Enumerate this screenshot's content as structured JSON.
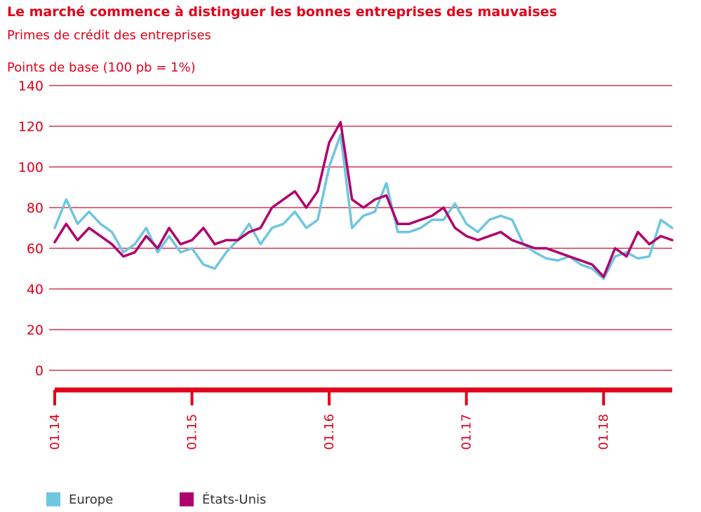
{
  "title": "Le marché commence à distinguer les bonnes entreprises des mauvaises",
  "subtitle": "Primes de crédit des entreprises",
  "chart_data": {
    "type": "line",
    "title": "Le marché commence à distinguer les bonnes entreprises des mauvaises",
    "subtitle": "Primes de crédit des entreprises",
    "ylabel": "Points de base (100 pb = 1%)",
    "xlabel": "",
    "ylim": [
      0,
      140
    ],
    "yticks": [
      0,
      20,
      40,
      60,
      80,
      100,
      120,
      140
    ],
    "xlim": [
      "2014-01",
      "2018-07"
    ],
    "xticks": [
      "01.14",
      "01.15",
      "01.16",
      "01.17",
      "01.18"
    ],
    "x_tick_dates": [
      "2014-01",
      "2015-01",
      "2016-01",
      "2017-01",
      "2018-01"
    ],
    "grid": "horizontal",
    "legend_position": "bottom-left",
    "series": [
      {
        "name": "Europe",
        "color": "#6ec6df",
        "x": [
          "2014-01",
          "2014-02",
          "2014-03",
          "2014-04",
          "2014-05",
          "2014-06",
          "2014-07",
          "2014-08",
          "2014-09",
          "2014-10",
          "2014-11",
          "2014-12",
          "2015-01",
          "2015-02",
          "2015-03",
          "2015-04",
          "2015-05",
          "2015-06",
          "2015-07",
          "2015-08",
          "2015-09",
          "2015-10",
          "2015-11",
          "2015-12",
          "2016-01",
          "2016-02",
          "2016-03",
          "2016-04",
          "2016-05",
          "2016-06",
          "2016-07",
          "2016-08",
          "2016-09",
          "2016-10",
          "2016-11",
          "2016-12",
          "2017-01",
          "2017-02",
          "2017-03",
          "2017-04",
          "2017-05",
          "2017-06",
          "2017-07",
          "2017-08",
          "2017-09",
          "2017-10",
          "2017-11",
          "2017-12",
          "2018-01",
          "2018-02",
          "2018-03",
          "2018-04",
          "2018-05",
          "2018-06",
          "2018-07"
        ],
        "values": [
          70,
          84,
          72,
          78,
          72,
          68,
          58,
          62,
          70,
          58,
          66,
          58,
          60,
          52,
          50,
          58,
          64,
          72,
          62,
          70,
          72,
          78,
          70,
          74,
          100,
          116,
          70,
          76,
          78,
          92,
          68,
          68,
          70,
          74,
          74,
          82,
          72,
          68,
          74,
          76,
          74,
          62,
          58,
          55,
          54,
          56,
          52,
          50,
          45,
          56,
          58,
          55,
          56,
          74,
          70
        ]
      },
      {
        "name": "États-Unis",
        "color": "#b0006c",
        "x": [
          "2014-01",
          "2014-02",
          "2014-03",
          "2014-04",
          "2014-05",
          "2014-06",
          "2014-07",
          "2014-08",
          "2014-09",
          "2014-10",
          "2014-11",
          "2014-12",
          "2015-01",
          "2015-02",
          "2015-03",
          "2015-04",
          "2015-05",
          "2015-06",
          "2015-07",
          "2015-08",
          "2015-09",
          "2015-10",
          "2015-11",
          "2015-12",
          "2016-01",
          "2016-02",
          "2016-03",
          "2016-04",
          "2016-05",
          "2016-06",
          "2016-07",
          "2016-08",
          "2016-09",
          "2016-10",
          "2016-11",
          "2016-12",
          "2017-01",
          "2017-02",
          "2017-03",
          "2017-04",
          "2017-05",
          "2017-06",
          "2017-07",
          "2017-08",
          "2017-09",
          "2017-10",
          "2017-11",
          "2017-12",
          "2018-01",
          "2018-02",
          "2018-03",
          "2018-04",
          "2018-05",
          "2018-06",
          "2018-07"
        ],
        "values": [
          63,
          72,
          64,
          70,
          66,
          62,
          56,
          58,
          66,
          60,
          70,
          62,
          64,
          70,
          62,
          64,
          64,
          68,
          70,
          80,
          84,
          88,
          80,
          88,
          112,
          122,
          84,
          80,
          84,
          86,
          72,
          72,
          74,
          76,
          80,
          70,
          66,
          64,
          66,
          68,
          64,
          62,
          60,
          60,
          58,
          56,
          54,
          52,
          46,
          60,
          56,
          68,
          62,
          66,
          64
        ]
      }
    ]
  }
}
